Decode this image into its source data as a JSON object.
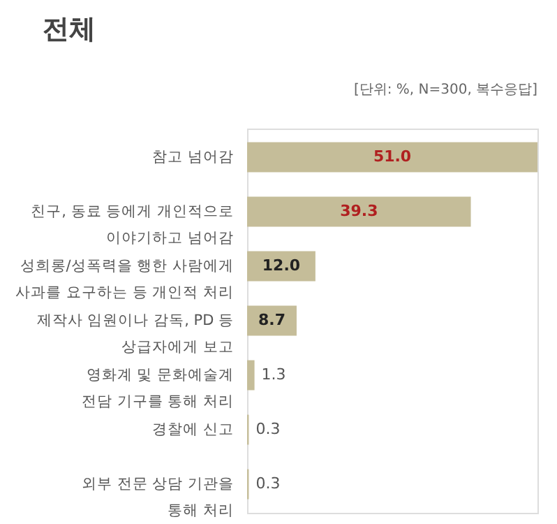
{
  "chart_data": {
    "type": "bar",
    "orientation": "horizontal",
    "title": "전체",
    "subtitle": "[단위: %, N=300, 복수응답]",
    "categories": [
      "참고 넘어감",
      "친구, 동료 등에게 개인적으로\n이야기하고 넘어감",
      "성희롱/성폭력을 행한 사람에게\n사과를 요구하는 등 개인적 처리",
      "제작사 임원이나 감독, PD 등\n상급자에게 보고",
      "영화계 및 문화예술계\n전담 기구를 통해 처리",
      "경찰에 신고",
      "외부 전문 상담 기관을\n통해 처리"
    ],
    "values": [
      51.0,
      39.3,
      12.0,
      8.7,
      1.3,
      0.3,
      0.3
    ],
    "value_labels": [
      "51.0",
      "39.3",
      "12.0",
      "8.7",
      "1.3",
      "0.3",
      "0.3"
    ],
    "color": "#c5bd99",
    "grid": false
  }
}
